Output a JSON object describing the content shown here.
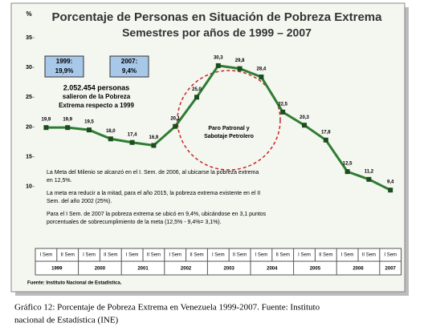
{
  "chart_data": {
    "type": "line",
    "title": "Porcentaje de Personas en Situación de Pobreza Extrema",
    "subtitle": "Semestres por años de 1999 – 2007",
    "y_label": "%",
    "categories": [
      "I Sem",
      "II Sem",
      "I Sem",
      "II Sem",
      "I Sem",
      "II Sem",
      "I Sem",
      "II Sem",
      "I Sem",
      "II Sem",
      "I Sem",
      "II Sem",
      "I Sem",
      "II Sem",
      "I Sem",
      "II Sem",
      "I Sem"
    ],
    "years": [
      "1999",
      "2000",
      "2001",
      "2002",
      "2003",
      "2004",
      "2005",
      "2006",
      "2007"
    ],
    "values": [
      19.9,
      19.9,
      19.5,
      18.0,
      17.4,
      16.9,
      20.1,
      25.0,
      30.3,
      29.8,
      28.4,
      22.5,
      20.3,
      17.8,
      12.5,
      11.2,
      9.4
    ],
    "value_labels": [
      "19,9",
      "19,9",
      "19,5",
      "18,0",
      "17,4",
      "16,9",
      "20,1",
      "25,0",
      "30,3",
      "29,8",
      "28,4",
      "22,5",
      "20,3",
      "17,8",
      "12,5",
      "11,2",
      "9,4"
    ],
    "color": "#2e7d32",
    "ylim": [
      0,
      35
    ],
    "yticks": [
      10,
      15,
      20,
      25,
      30,
      35
    ],
    "box_1999": [
      "1999:",
      "19,9%"
    ],
    "box_2007": [
      "2007:",
      "9,4%"
    ],
    "people_note": [
      "2.052.454 personas",
      "salieron de la Pobreza",
      "Extrema respecto a 1999"
    ],
    "circle_note": [
      "Paro Patronal y",
      "Sabotaje Petrolero"
    ],
    "notes": [
      [
        "La Meta del Milenio se alcanzó en el I. Sem. de 2006, al ubicarse la pobreza extrema",
        "en 12,5%."
      ],
      [
        "La meta era reducir a la mitad, para el año 2015, la pobreza extrema existente en el II",
        "Sem. del año 2002 (25%)."
      ],
      [
        "Para el I Sem. de 2007 la pobreza extrema se ubicó en 9,4%, ubicándose en 3,1 puntos",
        "porcentuales de sobrecumplimiento de la meta (12,5% - 9,4%= 3,1%)."
      ]
    ],
    "source": "Fuente: Instituto Nacional de Estadística."
  },
  "caption": [
    "Gráfico 12: Porcentaje de Pobreza Extrema en Venezuela 1999-2007. Fuente: Instituto",
    "nacional de Estadística (INE)"
  ]
}
